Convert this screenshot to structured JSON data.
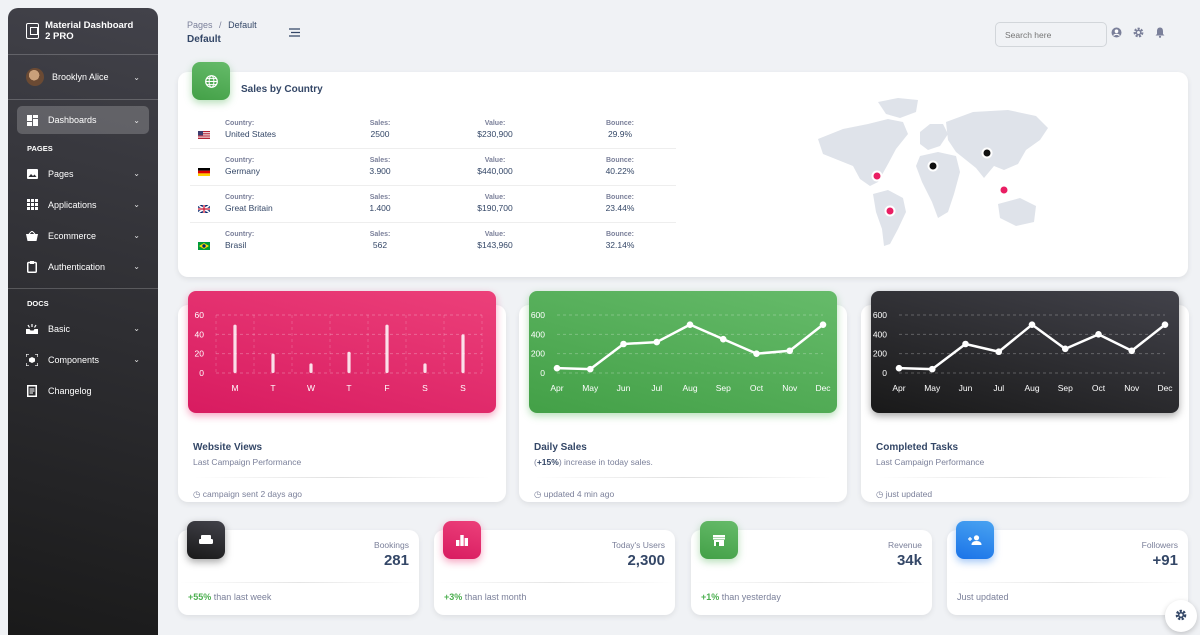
{
  "sidebar": {
    "brand": "Material Dashboard 2 PRO",
    "user": "Brooklyn Alice",
    "dashboards": "Dashboards",
    "pages_section": "PAGES",
    "pages_items": [
      {
        "label": "Pages",
        "icon": "image-icon"
      },
      {
        "label": "Applications",
        "icon": "apps-icon"
      },
      {
        "label": "Ecommerce",
        "icon": "basket-icon"
      },
      {
        "label": "Authentication",
        "icon": "clipboard-icon"
      }
    ],
    "docs_section": "DOCS",
    "docs_items": [
      {
        "label": "Basic",
        "icon": "upcoming-icon"
      },
      {
        "label": "Components",
        "icon": "view-in-ar-icon"
      },
      {
        "label": "Changelog",
        "icon": "receipt-icon"
      }
    ]
  },
  "topbar": {
    "crumb_root": "Pages",
    "crumb_sep": "/",
    "crumb_current": "Default",
    "title": "Default",
    "search_placeholder": "Search here"
  },
  "sales": {
    "title": "Sales by Country",
    "col_country": "Country:",
    "col_sales": "Sales:",
    "col_value": "Value:",
    "col_bounce": "Bounce:",
    "rows": [
      {
        "country": "United States",
        "sales": "2500",
        "value": "$230,900",
        "bounce": "29.9%"
      },
      {
        "country": "Germany",
        "sales": "3.900",
        "value": "$440,000",
        "bounce": "40.22%"
      },
      {
        "country": "Great Britain",
        "sales": "1.400",
        "value": "$190,700",
        "bounce": "23.44%"
      },
      {
        "country": "Brasil",
        "sales": "562",
        "value": "$143,960",
        "bounce": "32.14%"
      }
    ]
  },
  "charts": [
    {
      "title": "Website Views",
      "subtitle": "Last Campaign Performance",
      "footer": "campaign sent 2 days ago"
    },
    {
      "title": "Daily Sales",
      "subtitle_prefix": "(",
      "subtitle_highlight": "+15%",
      "subtitle_rest": ") increase in today sales.",
      "footer": "updated 4 min ago"
    },
    {
      "title": "Completed Tasks",
      "subtitle": "Last Campaign Performance",
      "footer": "just updated"
    }
  ],
  "chart_data": [
    {
      "type": "bar",
      "categories": [
        "M",
        "T",
        "W",
        "T",
        "F",
        "S",
        "S"
      ],
      "values": [
        50,
        20,
        10,
        22,
        50,
        10,
        40
      ],
      "yticks": [
        0,
        20,
        40,
        60
      ],
      "ylim": [
        0,
        60
      ],
      "grid": true,
      "color": "#e91e63"
    },
    {
      "type": "line",
      "categories": [
        "Apr",
        "May",
        "Jun",
        "Jul",
        "Aug",
        "Sep",
        "Oct",
        "Nov",
        "Dec"
      ],
      "values": [
        50,
        40,
        300,
        320,
        500,
        350,
        200,
        230,
        500
      ],
      "yticks": [
        0,
        200,
        400,
        600
      ],
      "ylim": [
        0,
        600
      ],
      "grid": true,
      "color": "#4caf50"
    },
    {
      "type": "line",
      "categories": [
        "Apr",
        "May",
        "Jun",
        "Jul",
        "Aug",
        "Sep",
        "Oct",
        "Nov",
        "Dec"
      ],
      "values": [
        50,
        40,
        300,
        220,
        500,
        250,
        400,
        230,
        500
      ],
      "yticks": [
        0,
        200,
        400,
        600
      ],
      "ylim": [
        0,
        600
      ],
      "grid": true,
      "color": "#262626"
    }
  ],
  "stats": [
    {
      "label": "Bookings",
      "value": "281",
      "change": "+55%",
      "note": "than last week",
      "icon": "weekend-icon"
    },
    {
      "label": "Today's Users",
      "value": "2,300",
      "change": "+3%",
      "note": "than last month",
      "icon": "leaderboard-icon"
    },
    {
      "label": "Revenue",
      "value": "34k",
      "change": "+1%",
      "note": "than yesterday",
      "icon": "store-icon"
    },
    {
      "label": "Followers",
      "value": "+91",
      "change": "",
      "note": "Just updated",
      "icon": "person-add-icon"
    }
  ],
  "colors": {
    "pink": "#e91e63",
    "green": "#4caf50",
    "dark": "#262626",
    "blue": "#1a73e8",
    "text": "#344767",
    "muted": "#7b809a"
  }
}
